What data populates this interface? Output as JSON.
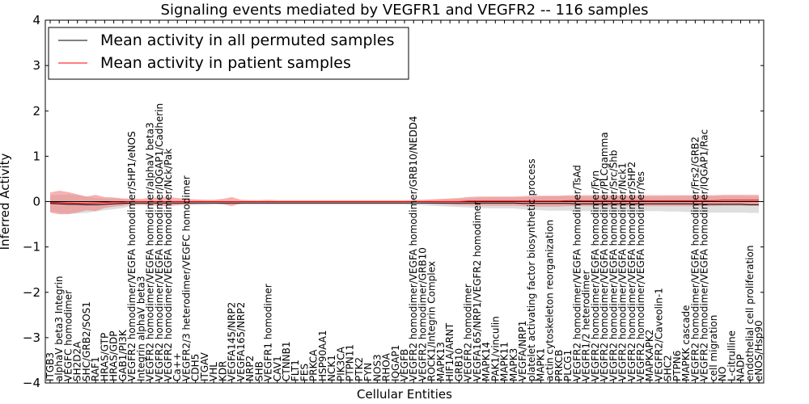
{
  "chart_data": {
    "type": "line",
    "title": "Signaling events mediated by VEGFR1 and VEGFR2 -- 116 samples",
    "xlabel": "Cellular Entities",
    "ylabel": "Inferred Activity",
    "ylim": [
      -4,
      4
    ],
    "yticks": [
      -4,
      -3,
      -2,
      -1,
      0,
      1,
      2,
      3,
      4
    ],
    "grid": false,
    "legend_position": "top-left",
    "series": [
      {
        "name": "Mean activity in all permuted samples",
        "color": "#000000",
        "role": "permuted"
      },
      {
        "name": "Mean activity in patient samples",
        "color": "#ff0000",
        "role": "patient"
      }
    ],
    "band_colors": {
      "permuted": "#c8c8c8",
      "patient": "#f08080"
    },
    "categories": [
      "ITGB3",
      "alphaV beta3 Integrin",
      "VEGFC homodimer",
      "SH2D2A",
      "SHC/GRB2/SOS1",
      "RAF1",
      "HRAS/GTP",
      "HRAS/GDP",
      "GAB1/PI3K",
      "VEGFR2 homodimer/VEGFA homodimer/SHP1/eNOS",
      "Integrin alphaV beta3",
      "VEGFR2 homodimer/VEGFA homodimer/alphaV beta3",
      "VEGFR2 homodimer/VEGFA homodimer/IQGAP1/Cadherin",
      "VEGFR2 homodimer/VEGFA homodimer/Nck/Pak",
      "Ca++",
      "VEGFR2/3 heterodimer/VEGFC homodimer",
      "CDH5",
      "ITGAV",
      "VHL",
      "KDR",
      "VEGFA145/NRP2",
      "VEGFA165/NRP2",
      "NRP2",
      "SHB",
      "VEGFR1 homodimer",
      "CAV1",
      "CTNNB1",
      "FLT1",
      "FES",
      "PRKCA",
      "HSP90AA1",
      "NCK1",
      "PIK3CA",
      "PTPN11",
      "PTK2",
      "FYN",
      "NOS3",
      "RHOA",
      "IQGAP1",
      "VEGFB",
      "VEGFR2 homodimer/VEGFA homodimer/GRB10/NEDD4",
      "VEGFR2 homodimer/GRB10",
      "ROCK1/Integrin Complex",
      "MAPK13",
      "HIF1A/ARNT",
      "GRB10",
      "VEGFR2 homodimer",
      "VEGFA165/NRP1/VEGFR2 homodimer",
      "MAPK14",
      "PAK1/vinculin",
      "MAPK11",
      "MAPK3",
      "VEGFA/NRP1",
      "platelet activating factor biosynthetic process",
      "MAPK1",
      "actin cytoskeleton reorganization",
      "PRKCB",
      "PLCG1",
      "VEGFR2 homodimer/VEGFA homodimer/TsAd",
      "VEGFR1/2 heterodimer",
      "VEGFR2 homodimer/VEGFA homodimer/Fyn",
      "VEGFR2 homodimer/VEGFA homodimer/PLCgamma",
      "VEGFR2 homodimer/VEGFA homodimer/Src/Shb",
      "VEGFR2 homodimer/VEGFA homodimer/Nck1",
      "VEGFR2 homodimer/VEGFA homodimer/SHP2",
      "VEGFR2 homodimer/VEGFA homodimer/Yes",
      "MAPKAPK2",
      "VEGFR2/Caveolin-1",
      "SHC2",
      "PTPN6",
      "MAPKK cascade",
      "VEGFR2 homodimer/VEGFA homodimer/Frs2/GRB2",
      "VEGFR2 homodimer/VEGFA homodimer/IQGAP1/Rac",
      "cell migration",
      "NO",
      "L-citrulline",
      "NADP",
      "endothelial cell proliferation",
      "eNOS/Hsp90"
    ],
    "permuted_mean": [
      -0.04,
      -0.05,
      -0.06,
      -0.06,
      -0.07,
      -0.07,
      -0.06,
      -0.05,
      -0.04,
      -0.03,
      -0.03,
      -0.03,
      -0.03,
      -0.03,
      -0.03,
      -0.03,
      -0.03,
      -0.03,
      -0.03,
      -0.03,
      -0.03,
      -0.03,
      -0.03,
      -0.03,
      -0.03,
      -0.03,
      -0.03,
      -0.03,
      -0.03,
      -0.03,
      -0.03,
      -0.03,
      -0.03,
      -0.03,
      -0.03,
      -0.03,
      -0.03,
      -0.03,
      -0.03,
      -0.03,
      -0.03,
      -0.03,
      -0.03,
      -0.03,
      -0.03,
      -0.03,
      -0.03,
      -0.03,
      -0.03,
      -0.03,
      -0.03,
      -0.03,
      -0.04,
      -0.04,
      -0.04,
      -0.04,
      -0.04,
      -0.04,
      -0.05,
      -0.05,
      -0.05,
      -0.05,
      -0.05,
      -0.05,
      -0.05,
      -0.05,
      -0.05,
      -0.05,
      -0.05,
      -0.05,
      -0.05,
      -0.05,
      -0.06,
      -0.06,
      -0.06,
      -0.06,
      -0.06,
      -0.07,
      -0.07
    ],
    "permuted_spread": [
      0.18,
      0.2,
      0.22,
      0.2,
      0.18,
      0.15,
      0.13,
      0.12,
      0.1,
      0.06,
      0.05,
      0.05,
      0.05,
      0.05,
      0.05,
      0.05,
      0.05,
      0.05,
      0.04,
      0.04,
      0.04,
      0.04,
      0.04,
      0.04,
      0.04,
      0.04,
      0.04,
      0.04,
      0.04,
      0.04,
      0.04,
      0.04,
      0.04,
      0.04,
      0.04,
      0.04,
      0.04,
      0.04,
      0.04,
      0.04,
      0.05,
      0.05,
      0.06,
      0.07,
      0.08,
      0.09,
      0.1,
      0.11,
      0.12,
      0.12,
      0.12,
      0.12,
      0.13,
      0.14,
      0.15,
      0.16,
      0.16,
      0.16,
      0.16,
      0.16,
      0.16,
      0.16,
      0.16,
      0.16,
      0.16,
      0.16,
      0.16,
      0.16,
      0.17,
      0.17,
      0.18,
      0.18,
      0.18,
      0.18,
      0.18,
      0.18,
      0.18,
      0.18,
      0.18
    ],
    "patient_mean": [
      -0.02,
      -0.02,
      -0.03,
      -0.04,
      -0.04,
      -0.03,
      -0.02,
      -0.01,
      -0.01,
      0.0,
      0.0,
      0.0,
      0.0,
      0.0,
      0.0,
      0.0,
      0.0,
      0.0,
      0.0,
      0.0,
      0.0,
      0.0,
      0.0,
      0.0,
      0.0,
      0.0,
      0.0,
      0.0,
      0.0,
      0.0,
      0.0,
      0.0,
      0.0,
      0.0,
      0.0,
      0.0,
      0.0,
      0.0,
      0.0,
      0.0,
      0.0,
      0.0,
      0.0,
      0.0,
      0.0,
      0.0,
      0.01,
      0.01,
      0.01,
      0.01,
      0.01,
      0.01,
      0.01,
      0.01,
      0.01,
      0.01,
      0.01,
      0.02,
      0.02,
      0.02,
      0.02,
      0.02,
      0.02,
      0.02,
      0.02,
      0.02,
      0.02,
      0.02,
      0.02,
      0.02,
      0.02,
      0.02,
      0.02,
      0.02,
      0.03,
      0.03,
      0.03,
      0.03,
      0.03
    ],
    "patient_spread": [
      0.22,
      0.26,
      0.24,
      0.2,
      0.15,
      0.18,
      0.12,
      0.1,
      0.08,
      0.07,
      0.06,
      0.08,
      0.09,
      0.1,
      0.08,
      0.06,
      0.05,
      0.04,
      0.04,
      0.06,
      0.1,
      0.04,
      0.03,
      0.03,
      0.04,
      0.03,
      0.03,
      0.03,
      0.03,
      0.03,
      0.03,
      0.03,
      0.03,
      0.03,
      0.03,
      0.03,
      0.03,
      0.03,
      0.03,
      0.03,
      0.04,
      0.04,
      0.05,
      0.06,
      0.07,
      0.08,
      0.09,
      0.1,
      0.1,
      0.1,
      0.1,
      0.1,
      0.11,
      0.12,
      0.12,
      0.12,
      0.12,
      0.12,
      0.12,
      0.12,
      0.12,
      0.12,
      0.12,
      0.12,
      0.12,
      0.12,
      0.12,
      0.12,
      0.12,
      0.12,
      0.12,
      0.12,
      0.12,
      0.12,
      0.12,
      0.12,
      0.12,
      0.12,
      0.12
    ]
  }
}
